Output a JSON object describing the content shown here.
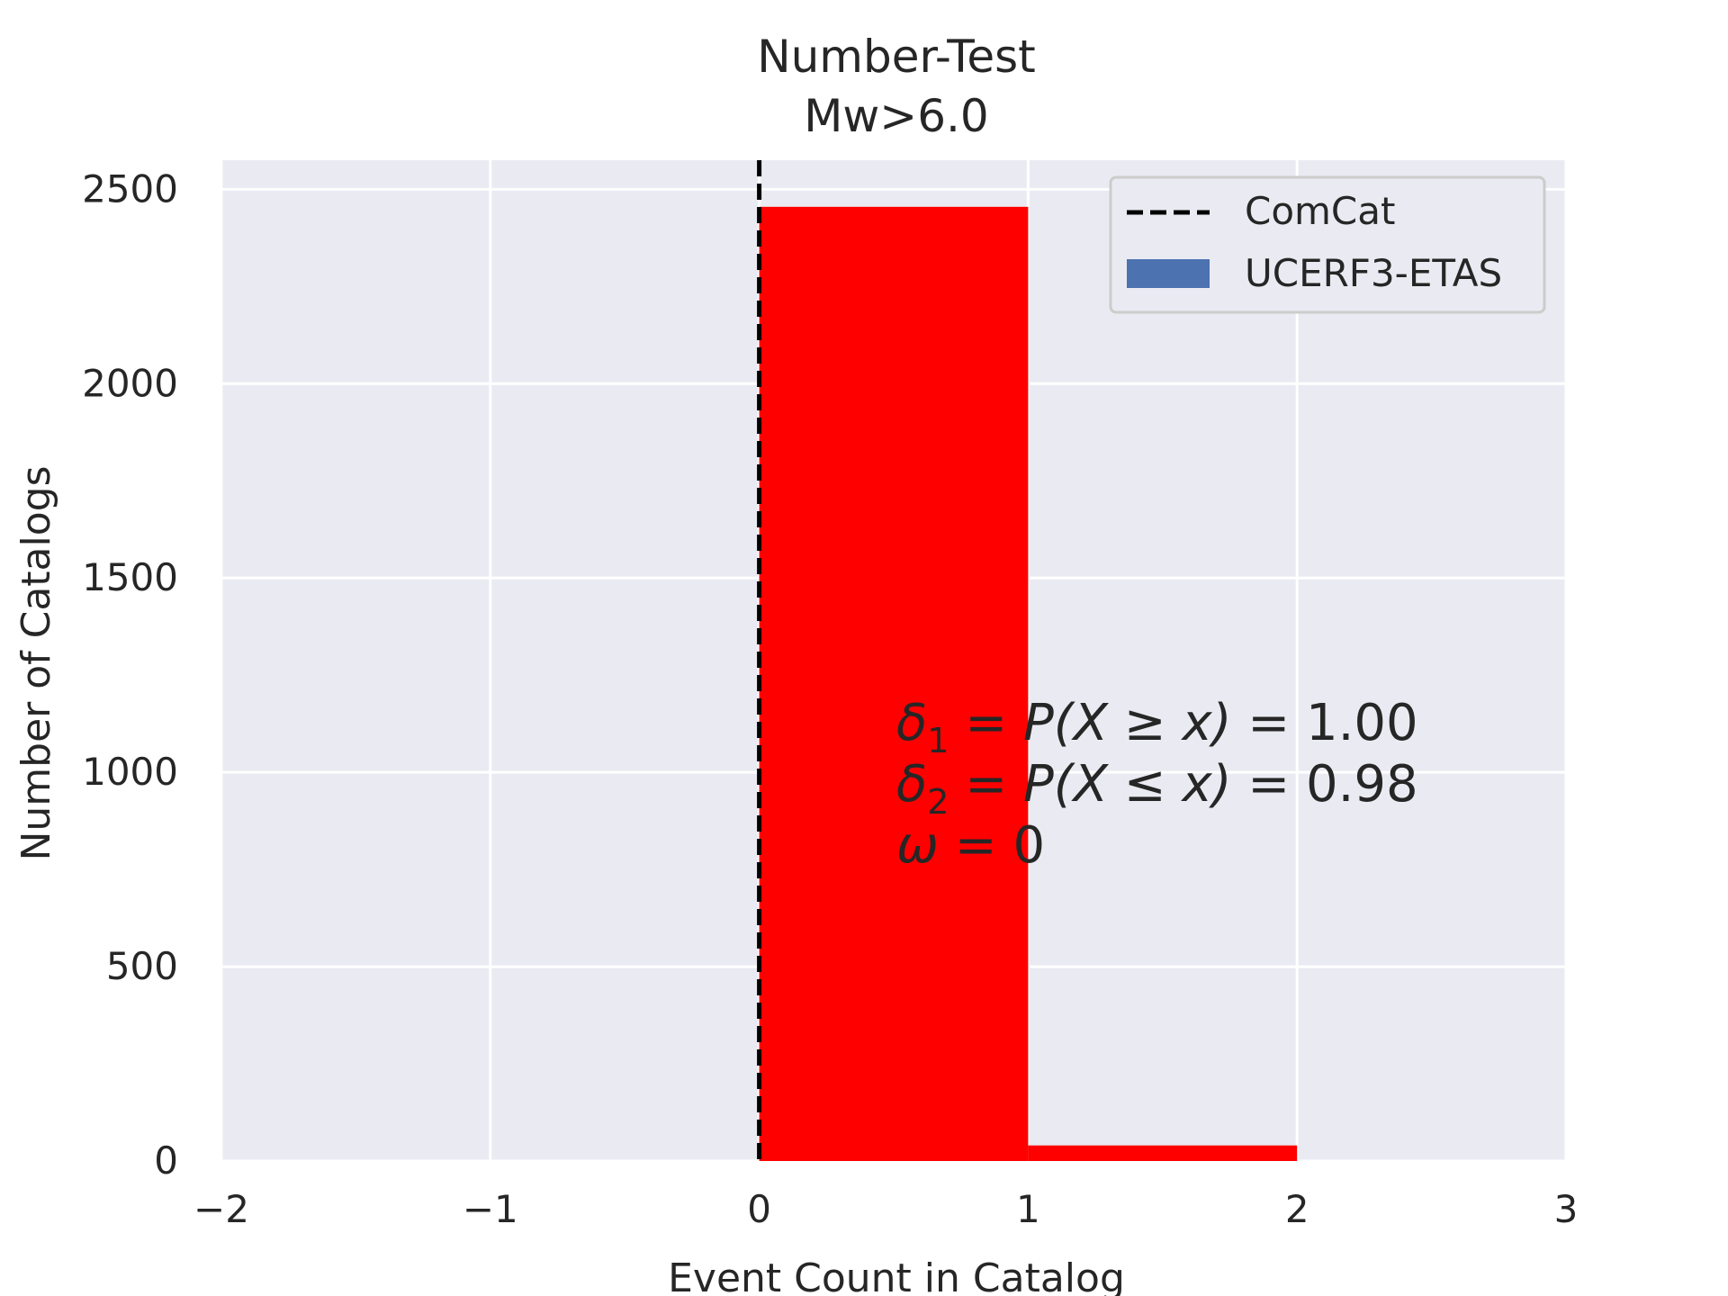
{
  "chart_data": {
    "type": "bar",
    "title": "Number-Test",
    "subtitle": "Mw>6.0",
    "xlabel": "Event Count in Catalog",
    "ylabel": "Number of Catalogs",
    "xlim": [
      -2,
      3
    ],
    "ylim": [
      0,
      2575
    ],
    "xticks": [
      -2,
      -1,
      0,
      1,
      2,
      3
    ],
    "xtick_labels": [
      "−2",
      "−1",
      "0",
      "1",
      "2",
      "3"
    ],
    "yticks": [
      0,
      500,
      1000,
      1500,
      2000,
      2500
    ],
    "ytick_labels": [
      "0",
      "500",
      "1000",
      "1500",
      "2000",
      "2500"
    ],
    "grid": true,
    "legend_position": "top-right",
    "legend": [
      {
        "label": "ComCat",
        "style": "dashed-line",
        "color": "#000000"
      },
      {
        "label": "UCERF3-ETAS",
        "style": "patch",
        "color": "#4c72b0"
      }
    ],
    "bins": [
      {
        "x0": 0,
        "x1": 1,
        "value": 2455
      },
      {
        "x0": 1,
        "x1": 2,
        "value": 40
      }
    ],
    "bar_color": "#ff0000",
    "observed_x": 0,
    "annotation": {
      "line1": {
        "sym": "δ",
        "sub": "1",
        "mid": " = P(X ≥ x) = ",
        "val": "1.00"
      },
      "line2": {
        "sym": "δ",
        "sub": "2",
        "mid": " = P(X ≤ x) = ",
        "val": "0.98"
      },
      "line3": {
        "sym": "ω",
        "mid": " = ",
        "val": "0"
      }
    }
  }
}
